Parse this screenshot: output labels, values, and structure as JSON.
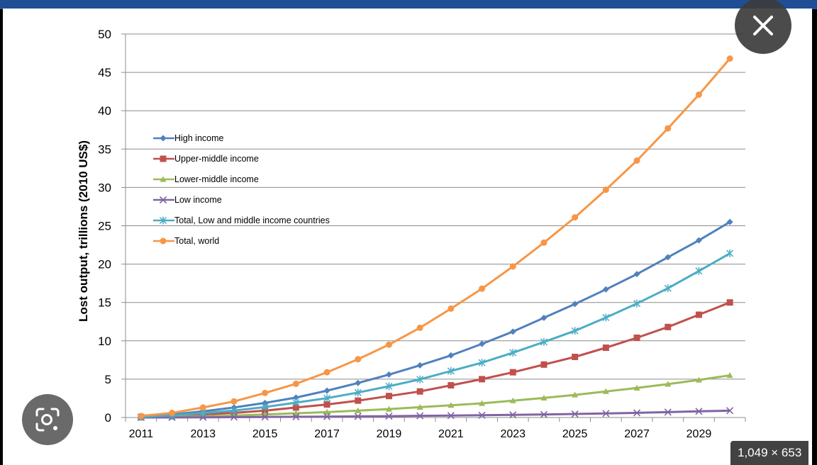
{
  "chart_data": {
    "type": "line",
    "ylabel": "Lost output, trillions (2010 US$)",
    "xlabel": "",
    "title": "",
    "ylim": [
      0,
      50
    ],
    "yticks": [
      "0",
      "5",
      "10",
      "15",
      "20",
      "25",
      "30",
      "35",
      "40",
      "45",
      "50"
    ],
    "xticks": [
      "2011",
      "2013",
      "2015",
      "2017",
      "2019",
      "2021",
      "2023",
      "2025",
      "2027",
      "2029"
    ],
    "x": [
      2011,
      2012,
      2013,
      2014,
      2015,
      2016,
      2017,
      2018,
      2019,
      2020,
      2021,
      2022,
      2023,
      2024,
      2025,
      2026,
      2027,
      2028,
      2029,
      2030
    ],
    "grid": true,
    "legend_position": "upper-left",
    "series": [
      {
        "name": "High income",
        "color": "#4f81bd",
        "marker": "diamond",
        "values": [
          0.1,
          0.4,
          0.8,
          1.3,
          1.9,
          2.6,
          3.5,
          4.5,
          5.6,
          6.8,
          8.1,
          9.6,
          11.2,
          13.0,
          14.8,
          16.7,
          18.7,
          20.9,
          23.1,
          25.5
        ]
      },
      {
        "name": "Upper-middle income",
        "color": "#c0504d",
        "marker": "square",
        "values": [
          0.05,
          0.2,
          0.4,
          0.6,
          0.9,
          1.3,
          1.7,
          2.2,
          2.8,
          3.4,
          4.2,
          5.0,
          5.9,
          6.9,
          7.9,
          9.1,
          10.4,
          11.8,
          13.4,
          15.0
        ]
      },
      {
        "name": "Lower-middle income",
        "color": "#9bbb59",
        "marker": "triangle",
        "values": [
          0.02,
          0.07,
          0.15,
          0.25,
          0.4,
          0.55,
          0.7,
          0.9,
          1.1,
          1.35,
          1.6,
          1.85,
          2.2,
          2.55,
          2.95,
          3.4,
          3.85,
          4.35,
          4.9,
          5.5
        ]
      },
      {
        "name": "Low income",
        "color": "#8064a2",
        "marker": "x",
        "values": [
          0.0,
          0.01,
          0.03,
          0.05,
          0.07,
          0.09,
          0.12,
          0.15,
          0.18,
          0.22,
          0.26,
          0.3,
          0.35,
          0.4,
          0.46,
          0.53,
          0.61,
          0.7,
          0.8,
          0.9
        ]
      },
      {
        "name": "Total, Low and middle income countries",
        "color": "#4bacc6",
        "marker": "star",
        "values": [
          0.07,
          0.28,
          0.58,
          0.9,
          1.37,
          1.94,
          2.52,
          3.25,
          4.08,
          4.97,
          6.06,
          7.15,
          8.45,
          9.85,
          11.3,
          13.03,
          14.86,
          16.85,
          19.1,
          21.4
        ]
      },
      {
        "name": "Total, world",
        "color": "#f79646",
        "marker": "circle",
        "values": [
          0.2,
          0.6,
          1.3,
          2.1,
          3.2,
          4.4,
          5.9,
          7.6,
          9.5,
          11.7,
          14.2,
          16.8,
          19.7,
          22.8,
          26.1,
          29.7,
          33.5,
          37.7,
          42.1,
          46.8
        ]
      }
    ]
  },
  "overlay": {
    "close_icon": "close-icon",
    "lens_icon": "lens-icon",
    "dimensions": "1,049 × 653"
  }
}
